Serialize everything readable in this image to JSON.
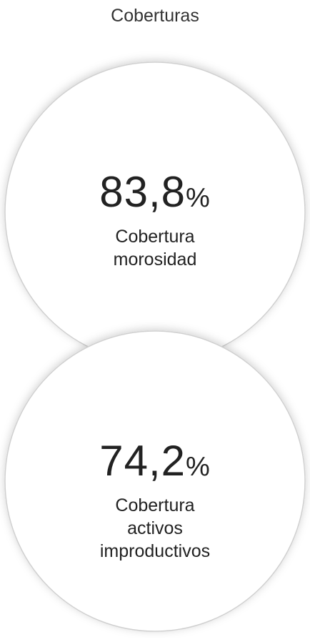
{
  "title": "Coberturas",
  "items": [
    {
      "value": "83,8",
      "unit": "%",
      "label_lines": [
        "Cobertura",
        "morosidad"
      ]
    },
    {
      "value": "74,2",
      "unit": "%",
      "label_lines": [
        "Cobertura",
        "activos",
        "improductivos"
      ]
    }
  ]
}
